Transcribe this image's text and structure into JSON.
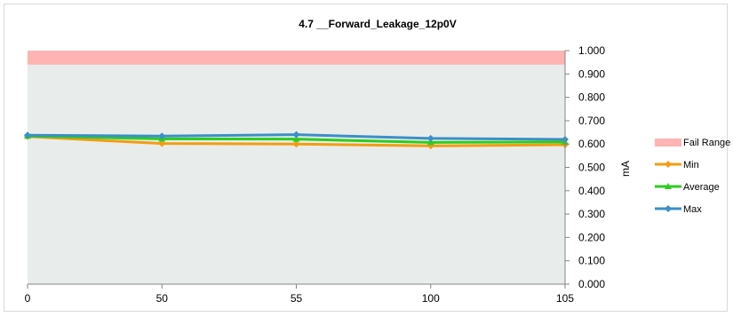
{
  "chart_data": {
    "type": "line",
    "title": "4.7 __Forward_Leakage_12p0V",
    "xlabel": "",
    "ylabel": "mA",
    "categories": [
      "0",
      "50",
      "55",
      "100",
      "105"
    ],
    "ylim": [
      0,
      1.0
    ],
    "ytick_labels": [
      "0.000",
      "0.100",
      "0.200",
      "0.300",
      "0.400",
      "0.500",
      "0.600",
      "0.700",
      "0.800",
      "0.900",
      "1.000"
    ],
    "fail_range": {
      "name": "Fail Range",
      "from": 0.94,
      "to": 1.0,
      "color": "#ffb3b3"
    },
    "plot_background": "#e8edeb",
    "series": [
      {
        "name": "Min",
        "values": [
          0.632,
          0.602,
          0.6,
          0.592,
          0.597
        ],
        "color": "#f39c12",
        "marker": "diamond"
      },
      {
        "name": "Average",
        "values": [
          0.634,
          0.622,
          0.621,
          0.607,
          0.609
        ],
        "color": "#2ecc1f",
        "marker": "triangle"
      },
      {
        "name": "Max",
        "values": [
          0.638,
          0.634,
          0.64,
          0.624,
          0.62
        ],
        "color": "#3b8fc8",
        "marker": "diamond"
      }
    ],
    "legend_position": "right",
    "grid": false
  }
}
